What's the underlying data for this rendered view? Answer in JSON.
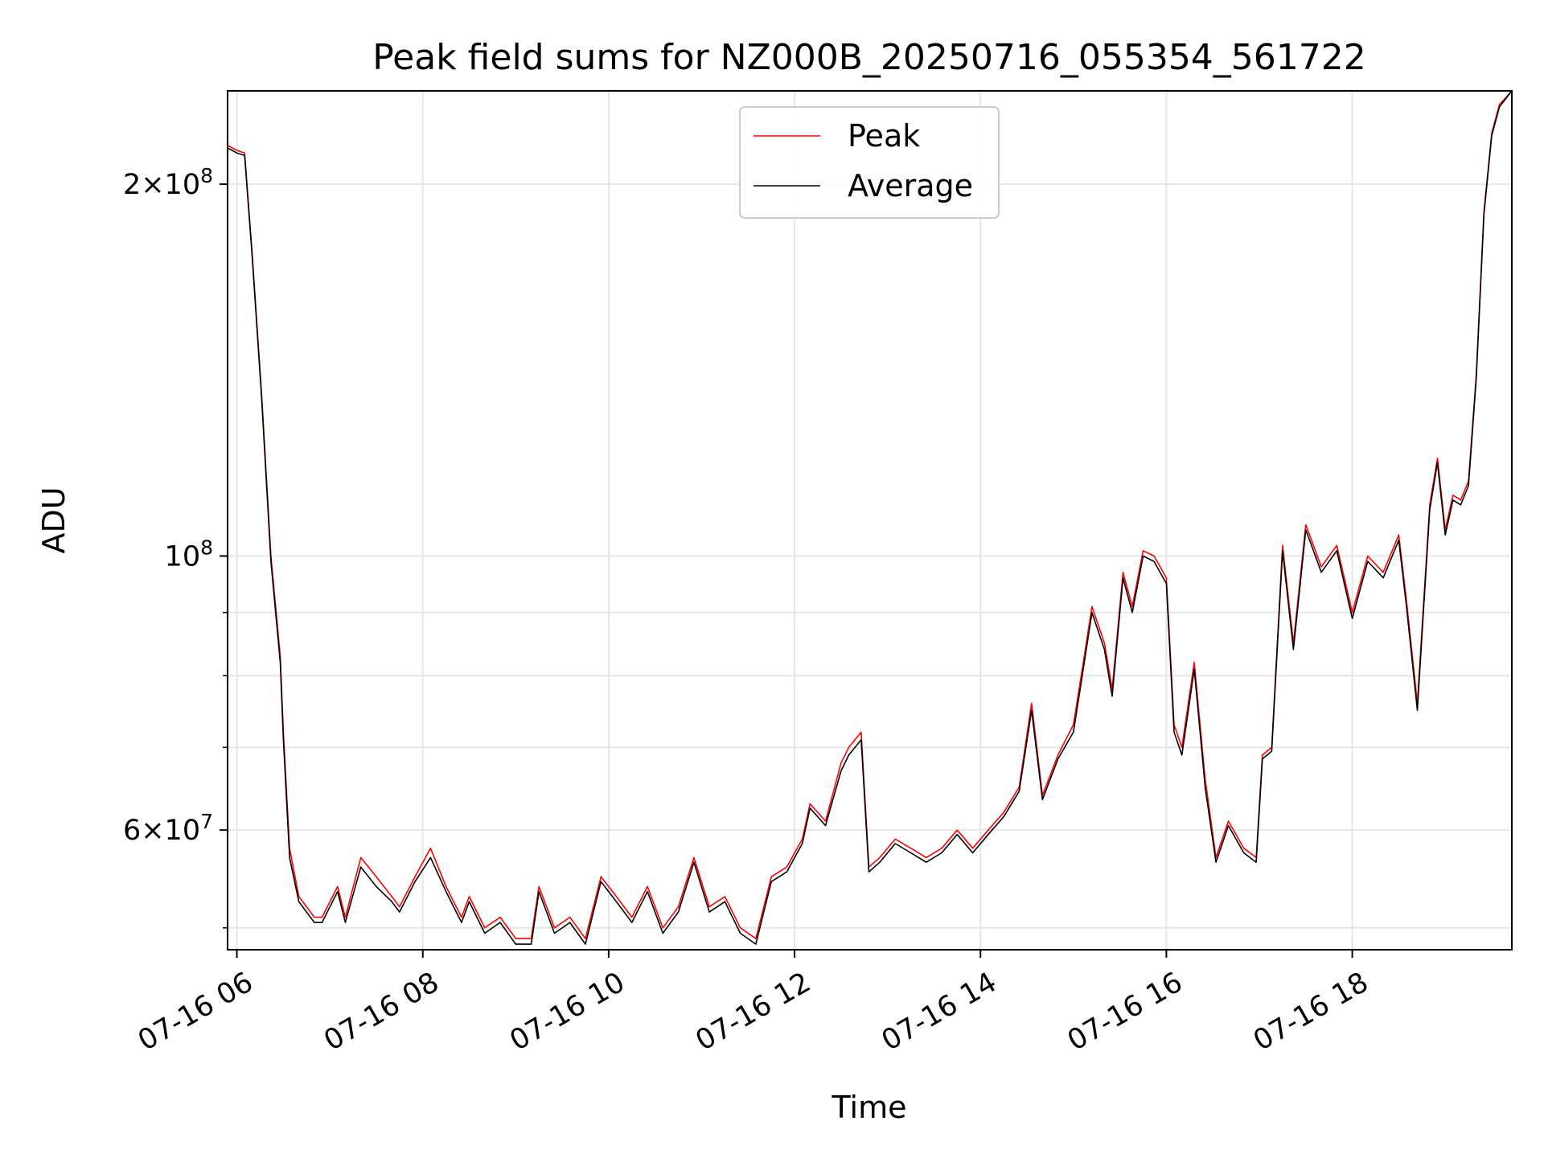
{
  "chart_data": {
    "type": "line",
    "title": "Peak field sums for NZ000B_20250716_055354_561722",
    "xlabel": "Time",
    "ylabel": "ADU",
    "yscale": "log",
    "xlim": [
      "2025-07-16 05:54",
      "2025-07-16 19:43"
    ],
    "ylim": [
      48000000,
      238000000
    ],
    "x_ticks": [
      "07-16 06",
      "07-16 08",
      "07-16 10",
      "07-16 12",
      "07-16 14",
      "07-16 16",
      "07-16 18"
    ],
    "y_ticks": [
      {
        "value": 200000000,
        "mantissa": "2",
        "exponent": "8"
      },
      {
        "value": 100000000,
        "mantissa": "",
        "exponent": "8"
      },
      {
        "value": 60000000,
        "mantissa": "6",
        "exponent": "7"
      }
    ],
    "grid": true,
    "legend": "top-center",
    "series": [
      {
        "name": "Peak",
        "color": "#ff0000",
        "x": [
          "2025-07-16 05:54",
          "2025-07-16 06:00",
          "2025-07-16 06:05",
          "2025-07-16 06:10",
          "2025-07-16 06:16",
          "2025-07-16 06:22",
          "2025-07-16 06:28",
          "2025-07-16 06:30",
          "2025-07-16 06:34",
          "2025-07-16 06:40",
          "2025-07-16 06:45",
          "2025-07-16 06:50",
          "2025-07-16 06:55",
          "2025-07-16 07:05",
          "2025-07-16 07:10",
          "2025-07-16 07:20",
          "2025-07-16 07:30",
          "2025-07-16 07:40",
          "2025-07-16 07:45",
          "2025-07-16 07:55",
          "2025-07-16 08:05",
          "2025-07-16 08:15",
          "2025-07-16 08:25",
          "2025-07-16 08:30",
          "2025-07-16 08:40",
          "2025-07-16 08:50",
          "2025-07-16 09:00",
          "2025-07-16 09:10",
          "2025-07-16 09:15",
          "2025-07-16 09:25",
          "2025-07-16 09:35",
          "2025-07-16 09:45",
          "2025-07-16 09:55",
          "2025-07-16 10:05",
          "2025-07-16 10:15",
          "2025-07-16 10:25",
          "2025-07-16 10:35",
          "2025-07-16 10:45",
          "2025-07-16 10:55",
          "2025-07-16 11:05",
          "2025-07-16 11:15",
          "2025-07-16 11:25",
          "2025-07-16 11:35",
          "2025-07-16 11:45",
          "2025-07-16 11:55",
          "2025-07-16 12:05",
          "2025-07-16 12:10",
          "2025-07-16 12:20",
          "2025-07-16 12:30",
          "2025-07-16 12:35",
          "2025-07-16 12:43",
          "2025-07-16 12:48",
          "2025-07-16 12:55",
          "2025-07-16 13:05",
          "2025-07-16 13:15",
          "2025-07-16 13:25",
          "2025-07-16 13:35",
          "2025-07-16 13:45",
          "2025-07-16 13:55",
          "2025-07-16 14:05",
          "2025-07-16 14:15",
          "2025-07-16 14:25",
          "2025-07-16 14:33",
          "2025-07-16 14:40",
          "2025-07-16 14:50",
          "2025-07-16 15:00",
          "2025-07-16 15:05",
          "2025-07-16 15:12",
          "2025-07-16 15:20",
          "2025-07-16 15:25",
          "2025-07-16 15:32",
          "2025-07-16 15:38",
          "2025-07-16 15:45",
          "2025-07-16 15:52",
          "2025-07-16 16:00",
          "2025-07-16 16:05",
          "2025-07-16 16:10",
          "2025-07-16 16:18",
          "2025-07-16 16:25",
          "2025-07-16 16:32",
          "2025-07-16 16:40",
          "2025-07-16 16:50",
          "2025-07-16 16:58",
          "2025-07-16 17:02",
          "2025-07-16 17:08",
          "2025-07-16 17:15",
          "2025-07-16 17:22",
          "2025-07-16 17:30",
          "2025-07-16 17:40",
          "2025-07-16 17:50",
          "2025-07-16 18:00",
          "2025-07-16 18:10",
          "2025-07-16 18:20",
          "2025-07-16 18:30",
          "2025-07-16 18:35",
          "2025-07-16 18:42",
          "2025-07-16 18:50",
          "2025-07-16 18:55",
          "2025-07-16 19:00",
          "2025-07-16 19:05",
          "2025-07-16 19:10",
          "2025-07-16 19:15",
          "2025-07-16 19:20",
          "2025-07-16 19:25",
          "2025-07-16 19:30",
          "2025-07-16 19:35",
          "2025-07-16 19:43"
        ],
        "values": [
          215000000,
          213000000,
          212000000,
          175000000,
          135000000,
          100000000,
          83000000,
          72000000,
          58000000,
          53000000,
          52000000,
          51000000,
          51000000,
          54000000,
          51000000,
          57000000,
          55000000,
          53000000,
          52000000,
          55000000,
          58000000,
          54000000,
          51000000,
          53000000,
          50000000,
          51000000,
          49000000,
          49000000,
          54000000,
          50000000,
          51000000,
          49000000,
          55000000,
          53000000,
          51000000,
          54000000,
          50000000,
          52000000,
          57000000,
          52000000,
          53000000,
          50000000,
          49000000,
          55000000,
          56000000,
          59000000,
          63000000,
          61000000,
          68000000,
          70000000,
          72000000,
          56000000,
          57000000,
          59000000,
          58000000,
          57000000,
          58000000,
          60000000,
          58000000,
          60000000,
          62000000,
          65000000,
          76000000,
          64000000,
          69000000,
          73000000,
          80000000,
          91000000,
          85000000,
          78000000,
          97000000,
          91000000,
          101000000,
          100000000,
          96000000,
          73000000,
          70000000,
          82000000,
          66000000,
          57000000,
          61000000,
          58000000,
          57000000,
          69000000,
          70000000,
          102000000,
          85000000,
          106000000,
          98000000,
          102000000,
          90000000,
          100000000,
          97000000,
          104000000,
          92000000,
          76000000,
          110000000,
          120000000,
          105000000,
          112000000,
          111000000,
          115000000,
          140000000,
          190000000,
          220000000,
          232000000,
          238000000
        ]
      },
      {
        "name": "Average",
        "color": "#000000",
        "x": [
          "2025-07-16 05:54",
          "2025-07-16 06:00",
          "2025-07-16 06:05",
          "2025-07-16 06:10",
          "2025-07-16 06:16",
          "2025-07-16 06:22",
          "2025-07-16 06:28",
          "2025-07-16 06:30",
          "2025-07-16 06:34",
          "2025-07-16 06:40",
          "2025-07-16 06:45",
          "2025-07-16 06:50",
          "2025-07-16 06:55",
          "2025-07-16 07:05",
          "2025-07-16 07:10",
          "2025-07-16 07:20",
          "2025-07-16 07:30",
          "2025-07-16 07:40",
          "2025-07-16 07:45",
          "2025-07-16 07:55",
          "2025-07-16 08:05",
          "2025-07-16 08:15",
          "2025-07-16 08:25",
          "2025-07-16 08:30",
          "2025-07-16 08:40",
          "2025-07-16 08:50",
          "2025-07-16 09:00",
          "2025-07-16 09:10",
          "2025-07-16 09:15",
          "2025-07-16 09:25",
          "2025-07-16 09:35",
          "2025-07-16 09:45",
          "2025-07-16 09:55",
          "2025-07-16 10:05",
          "2025-07-16 10:15",
          "2025-07-16 10:25",
          "2025-07-16 10:35",
          "2025-07-16 10:45",
          "2025-07-16 10:55",
          "2025-07-16 11:05",
          "2025-07-16 11:15",
          "2025-07-16 11:25",
          "2025-07-16 11:35",
          "2025-07-16 11:45",
          "2025-07-16 11:55",
          "2025-07-16 12:05",
          "2025-07-16 12:10",
          "2025-07-16 12:20",
          "2025-07-16 12:30",
          "2025-07-16 12:35",
          "2025-07-16 12:43",
          "2025-07-16 12:48",
          "2025-07-16 12:55",
          "2025-07-16 13:05",
          "2025-07-16 13:15",
          "2025-07-16 13:25",
          "2025-07-16 13:35",
          "2025-07-16 13:45",
          "2025-07-16 13:55",
          "2025-07-16 14:05",
          "2025-07-16 14:15",
          "2025-07-16 14:25",
          "2025-07-16 14:33",
          "2025-07-16 14:40",
          "2025-07-16 14:50",
          "2025-07-16 15:00",
          "2025-07-16 15:05",
          "2025-07-16 15:12",
          "2025-07-16 15:20",
          "2025-07-16 15:25",
          "2025-07-16 15:32",
          "2025-07-16 15:38",
          "2025-07-16 15:45",
          "2025-07-16 15:52",
          "2025-07-16 16:00",
          "2025-07-16 16:05",
          "2025-07-16 16:10",
          "2025-07-16 16:18",
          "2025-07-16 16:25",
          "2025-07-16 16:32",
          "2025-07-16 16:40",
          "2025-07-16 16:50",
          "2025-07-16 16:58",
          "2025-07-16 17:02",
          "2025-07-16 17:08",
          "2025-07-16 17:15",
          "2025-07-16 17:22",
          "2025-07-16 17:30",
          "2025-07-16 17:40",
          "2025-07-16 17:50",
          "2025-07-16 18:00",
          "2025-07-16 18:10",
          "2025-07-16 18:20",
          "2025-07-16 18:30",
          "2025-07-16 18:35",
          "2025-07-16 18:42",
          "2025-07-16 18:50",
          "2025-07-16 18:55",
          "2025-07-16 19:00",
          "2025-07-16 19:05",
          "2025-07-16 19:10",
          "2025-07-16 19:15",
          "2025-07-16 19:20",
          "2025-07-16 19:25",
          "2025-07-16 19:30",
          "2025-07-16 19:35",
          "2025-07-16 19:43"
        ],
        "values": [
          214000000,
          212000000,
          211000000,
          174000000,
          134000000,
          99000000,
          82000000,
          71000000,
          57000000,
          52500000,
          51500000,
          50500000,
          50500000,
          53500000,
          50500000,
          56000000,
          54000000,
          52500000,
          51500000,
          54500000,
          57000000,
          53500000,
          50500000,
          52500000,
          49500000,
          50500000,
          48500000,
          48500000,
          53500000,
          49500000,
          50500000,
          48500000,
          54500000,
          52500000,
          50500000,
          53500000,
          49500000,
          51500000,
          56500000,
          51500000,
          52500000,
          49500000,
          48500000,
          54500000,
          55500000,
          58500000,
          62500000,
          60500000,
          67000000,
          69000000,
          71000000,
          55500000,
          56500000,
          58500000,
          57500000,
          56500000,
          57500000,
          59500000,
          57500000,
          59500000,
          61500000,
          64500000,
          75000000,
          63500000,
          68500000,
          72000000,
          79000000,
          90000000,
          84000000,
          77000000,
          96000000,
          90000000,
          100000000,
          99000000,
          95000000,
          72000000,
          69000000,
          81000000,
          65000000,
          56500000,
          60500000,
          57500000,
          56500000,
          68500000,
          69500000,
          101000000,
          84000000,
          105000000,
          97000000,
          101000000,
          89000000,
          99000000,
          96000000,
          103000000,
          91000000,
          75000000,
          109000000,
          119000000,
          104000000,
          111000000,
          110000000,
          114000000,
          139000000,
          189000000,
          219000000,
          231000000,
          238000000
        ]
      }
    ]
  }
}
